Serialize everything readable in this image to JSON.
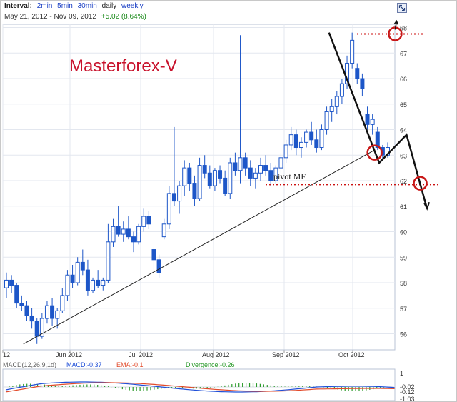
{
  "toolbar": {
    "interval_label": "Interval:",
    "intervals": [
      "2min",
      "5min",
      "30min",
      "daily",
      "weekly"
    ],
    "date_range": "May 21, 2012 - Nov 09, 2012",
    "change": "+5.02 (8.64%)"
  },
  "watermark": "Masterforex-V",
  "pivot_label": "pivot MF",
  "chart_data": {
    "type": "candlestick",
    "y_ticks": [
      56,
      57,
      58,
      59,
      60,
      61,
      62,
      63,
      64,
      65,
      66,
      67,
      68
    ],
    "ylim": [
      55.5,
      68.2
    ],
    "x_ticks": [
      "12",
      "Jun 2012",
      "Jul 2012",
      "Aug 2012",
      "Sep 2012",
      "Oct 2012"
    ],
    "grid": true,
    "pivot_level": 61.85,
    "annotations": {
      "trendline_start": {
        "date": "2012-05-30",
        "y": 55.6
      },
      "trendline_end": {
        "date": "2012-10-31",
        "y": 63.2
      },
      "top_level": 67.75,
      "top_circle": {
        "date": "2012-11-09",
        "y": 67.75
      },
      "break_circle": {
        "date": "2012-10-31",
        "y": 63.1
      },
      "target_circle": {
        "date": "2012-11-20",
        "y": 61.9
      },
      "projection_path": [
        {
          "date": "2012-10-11",
          "y": 67.8
        },
        {
          "date": "2012-11-02",
          "y": 62.7
        },
        {
          "date": "2012-11-14",
          "y": 63.8
        },
        {
          "date": "2012-11-23",
          "y": 60.9
        }
      ]
    },
    "candles": [
      {
        "o": 57.8,
        "h": 58.4,
        "l": 57.4,
        "c": 58.1
      },
      {
        "o": 58.1,
        "h": 58.3,
        "l": 57.6,
        "c": 57.9
      },
      {
        "o": 57.9,
        "h": 58.0,
        "l": 57.0,
        "c": 57.2
      },
      {
        "o": 57.2,
        "h": 57.5,
        "l": 56.9,
        "c": 57.1
      },
      {
        "o": 57.1,
        "h": 57.3,
        "l": 56.5,
        "c": 56.7
      },
      {
        "o": 56.7,
        "h": 57.0,
        "l": 56.2,
        "c": 56.5
      },
      {
        "o": 56.5,
        "h": 56.6,
        "l": 55.6,
        "c": 55.9
      },
      {
        "o": 55.9,
        "h": 56.8,
        "l": 55.8,
        "c": 56.6
      },
      {
        "o": 56.6,
        "h": 57.3,
        "l": 56.4,
        "c": 57.1
      },
      {
        "o": 57.1,
        "h": 57.4,
        "l": 56.3,
        "c": 56.6
      },
      {
        "o": 56.6,
        "h": 57.0,
        "l": 56.2,
        "c": 56.9
      },
      {
        "o": 56.9,
        "h": 57.8,
        "l": 56.8,
        "c": 57.5
      },
      {
        "o": 57.5,
        "h": 58.5,
        "l": 57.3,
        "c": 58.3
      },
      {
        "o": 58.3,
        "h": 58.7,
        "l": 57.8,
        "c": 58.0
      },
      {
        "o": 58.0,
        "h": 59.0,
        "l": 57.9,
        "c": 58.8
      },
      {
        "o": 58.8,
        "h": 59.3,
        "l": 58.3,
        "c": 58.5
      },
      {
        "o": 58.5,
        "h": 58.9,
        "l": 57.5,
        "c": 57.7
      },
      {
        "o": 57.7,
        "h": 58.2,
        "l": 57.6,
        "c": 58.1
      },
      {
        "o": 58.1,
        "h": 58.5,
        "l": 57.8,
        "c": 57.9
      },
      {
        "o": 57.9,
        "h": 58.2,
        "l": 57.7,
        "c": 58.1
      },
      {
        "o": 58.1,
        "h": 60.3,
        "l": 58.0,
        "c": 59.6
      },
      {
        "o": 59.6,
        "h": 60.5,
        "l": 59.4,
        "c": 60.2
      },
      {
        "o": 60.2,
        "h": 61.0,
        "l": 59.8,
        "c": 59.9
      },
      {
        "o": 59.9,
        "h": 60.4,
        "l": 59.6,
        "c": 60.1
      },
      {
        "o": 60.1,
        "h": 60.6,
        "l": 59.7,
        "c": 59.8
      },
      {
        "o": 59.8,
        "h": 60.0,
        "l": 59.2,
        "c": 59.6
      },
      {
        "o": 59.6,
        "h": 60.3,
        "l": 59.5,
        "c": 60.2
      },
      {
        "o": 60.2,
        "h": 60.9,
        "l": 60.0,
        "c": 60.6
      },
      {
        "o": 60.6,
        "h": 60.8,
        "l": 60.1,
        "c": 60.3
      },
      {
        "o": 59.3,
        "h": 59.4,
        "l": 58.4,
        "c": 58.9
      },
      {
        "o": 58.9,
        "h": 59.1,
        "l": 58.2,
        "c": 58.4
      },
      {
        "o": 59.8,
        "h": 60.5,
        "l": 59.7,
        "c": 60.3
      },
      {
        "o": 60.3,
        "h": 61.8,
        "l": 60.1,
        "c": 61.5
      },
      {
        "o": 61.5,
        "h": 64.1,
        "l": 61.0,
        "c": 61.2
      },
      {
        "o": 61.2,
        "h": 62.0,
        "l": 60.7,
        "c": 61.8
      },
      {
        "o": 61.8,
        "h": 62.8,
        "l": 61.4,
        "c": 62.5
      },
      {
        "o": 62.5,
        "h": 62.7,
        "l": 61.6,
        "c": 61.9
      },
      {
        "o": 61.9,
        "h": 62.2,
        "l": 61.0,
        "c": 61.3
      },
      {
        "o": 61.3,
        "h": 62.9,
        "l": 61.2,
        "c": 62.6
      },
      {
        "o": 62.6,
        "h": 63.0,
        "l": 62.1,
        "c": 62.3
      },
      {
        "o": 62.3,
        "h": 62.6,
        "l": 61.7,
        "c": 61.8
      },
      {
        "o": 61.8,
        "h": 62.5,
        "l": 61.6,
        "c": 62.4
      },
      {
        "o": 62.4,
        "h": 62.6,
        "l": 61.9,
        "c": 62.1
      },
      {
        "o": 62.1,
        "h": 62.4,
        "l": 61.4,
        "c": 61.5
      },
      {
        "o": 61.5,
        "h": 62.9,
        "l": 61.3,
        "c": 62.7
      },
      {
        "o": 62.7,
        "h": 63.1,
        "l": 62.2,
        "c": 62.4
      },
      {
        "o": 62.4,
        "h": 67.7,
        "l": 61.9,
        "c": 62.9
      },
      {
        "o": 62.9,
        "h": 63.1,
        "l": 62.2,
        "c": 62.5
      },
      {
        "o": 62.5,
        "h": 62.8,
        "l": 61.8,
        "c": 62.1
      },
      {
        "o": 62.1,
        "h": 62.5,
        "l": 61.7,
        "c": 62.3
      },
      {
        "o": 62.3,
        "h": 62.9,
        "l": 62.0,
        "c": 62.6
      },
      {
        "o": 62.6,
        "h": 63.0,
        "l": 62.2,
        "c": 62.4
      },
      {
        "o": 62.4,
        "h": 62.7,
        "l": 61.8,
        "c": 62.0
      },
      {
        "o": 62.0,
        "h": 62.6,
        "l": 61.9,
        "c": 62.5
      },
      {
        "o": 62.5,
        "h": 63.1,
        "l": 62.3,
        "c": 62.9
      },
      {
        "o": 62.9,
        "h": 63.6,
        "l": 62.7,
        "c": 63.4
      },
      {
        "o": 63.4,
        "h": 64.1,
        "l": 63.2,
        "c": 63.8
      },
      {
        "o": 63.8,
        "h": 64.0,
        "l": 63.0,
        "c": 63.3
      },
      {
        "o": 63.3,
        "h": 63.7,
        "l": 62.9,
        "c": 63.5
      },
      {
        "o": 63.5,
        "h": 64.0,
        "l": 63.3,
        "c": 63.9
      },
      {
        "o": 63.9,
        "h": 64.3,
        "l": 63.4,
        "c": 63.6
      },
      {
        "o": 63.6,
        "h": 64.0,
        "l": 63.1,
        "c": 63.3
      },
      {
        "o": 63.3,
        "h": 64.2,
        "l": 63.2,
        "c": 64.0
      },
      {
        "o": 64.0,
        "h": 64.9,
        "l": 63.8,
        "c": 64.7
      },
      {
        "o": 64.7,
        "h": 65.2,
        "l": 64.3,
        "c": 64.9
      },
      {
        "o": 64.9,
        "h": 65.5,
        "l": 64.6,
        "c": 65.3
      },
      {
        "o": 65.3,
        "h": 66.0,
        "l": 65.0,
        "c": 65.8
      },
      {
        "o": 65.8,
        "h": 66.9,
        "l": 65.6,
        "c": 66.6
      },
      {
        "o": 66.6,
        "h": 67.8,
        "l": 66.4,
        "c": 67.5
      },
      {
        "o": 66.4,
        "h": 66.6,
        "l": 65.8,
        "c": 66.0
      },
      {
        "o": 66.0,
        "h": 66.2,
        "l": 65.3,
        "c": 65.6
      },
      {
        "o": 64.6,
        "h": 64.9,
        "l": 64.0,
        "c": 64.2
      },
      {
        "o": 64.2,
        "h": 64.6,
        "l": 63.8,
        "c": 64.4
      },
      {
        "o": 63.9,
        "h": 64.1,
        "l": 63.2,
        "c": 63.3
      },
      {
        "o": 63.3,
        "h": 63.4,
        "l": 62.8,
        "c": 63.0
      },
      {
        "o": 63.0,
        "h": 63.5,
        "l": 62.9,
        "c": 63.3
      }
    ],
    "macd": {
      "legend": {
        "name": "MACD(12,26,9,1d)",
        "macd": "MACD:-0.37",
        "ema": "EMA:-0.1",
        "divergence": "Divergence:-0.26"
      },
      "y_ticks": [
        "1",
        "-0.02",
        "-0.12",
        "-1.03"
      ],
      "colors": {
        "macd": "#1f4fd8",
        "ema": "#e24a2a",
        "divergence": "#2a9a2a"
      }
    }
  }
}
